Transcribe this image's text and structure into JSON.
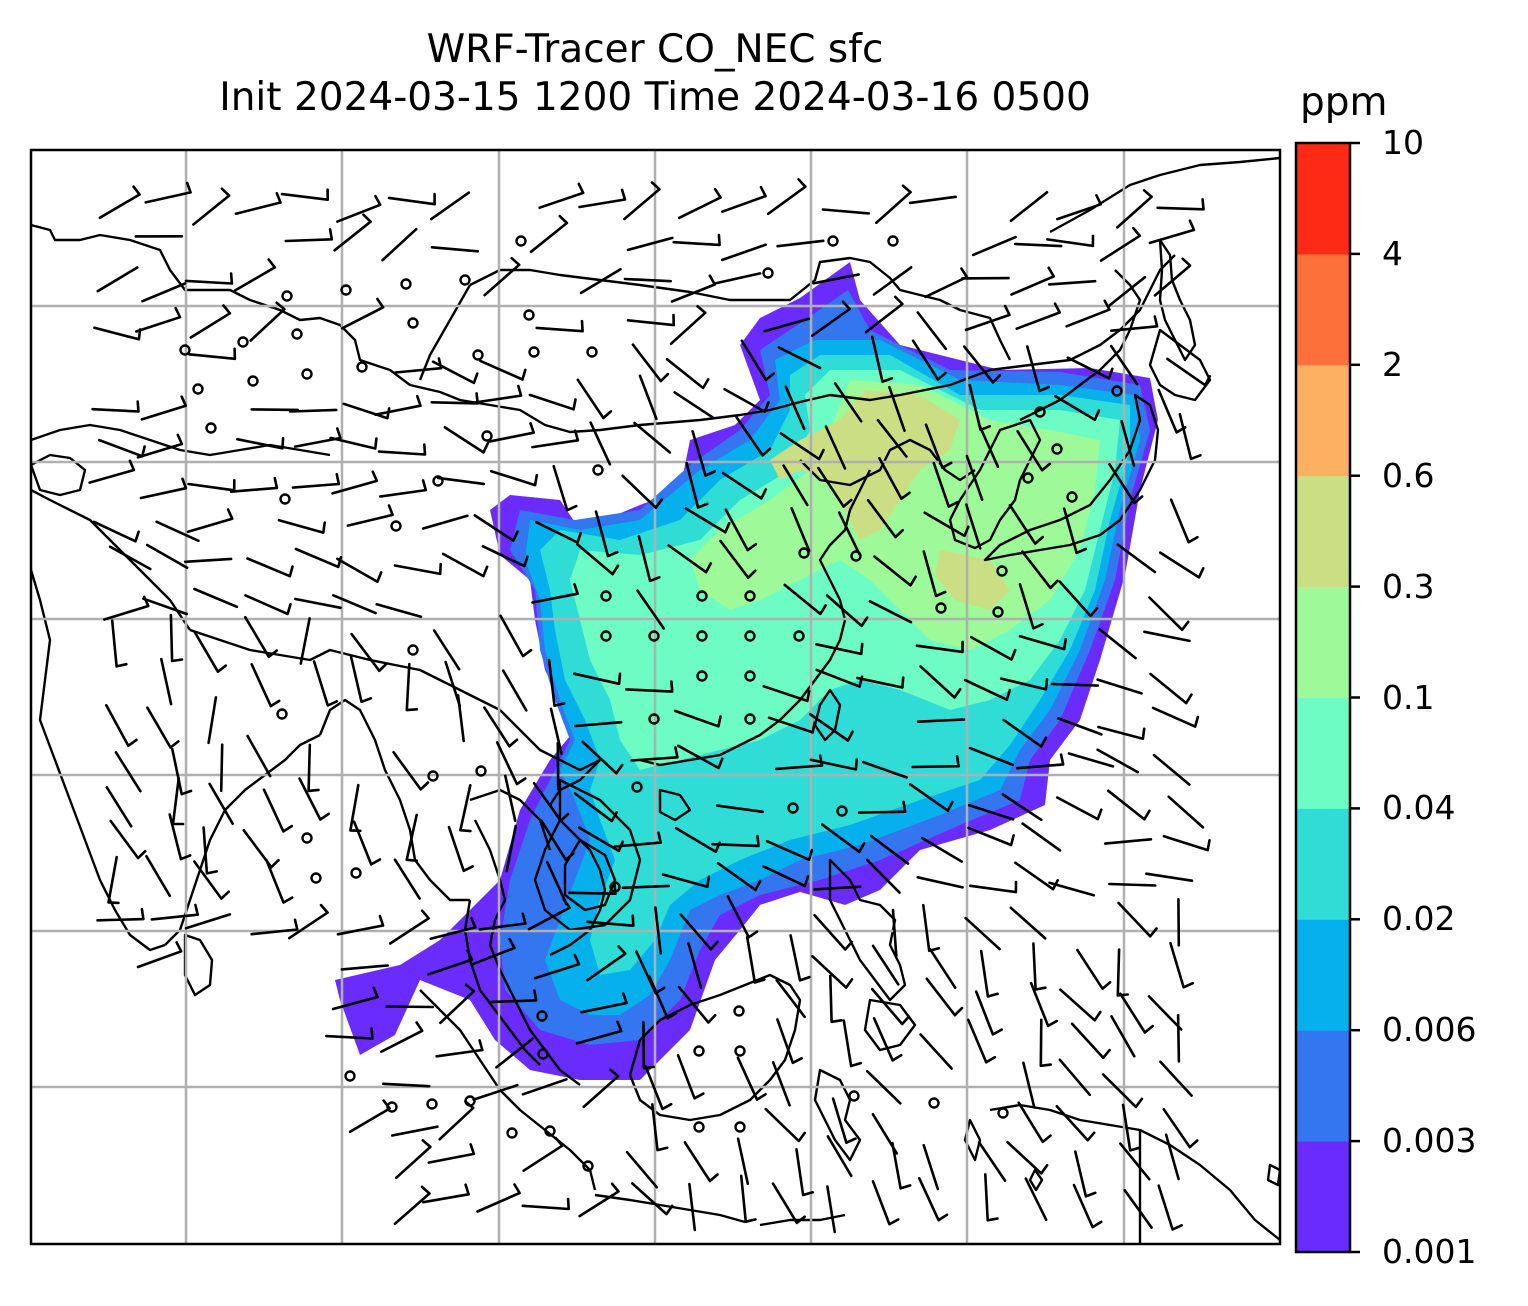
{
  "title": {
    "line1": "WRF-Tracer CO_NEC sfc",
    "line2": "Init 2024-03-15 1200 Time 2024-03-16 0500"
  },
  "colorbar": {
    "unit": "ppm",
    "levels": [
      "0.001",
      "0.003",
      "0.006",
      "0.02",
      "0.04",
      "0.1",
      "0.3",
      "0.6",
      "2",
      "4",
      "10"
    ],
    "colors": [
      "#6a2cfc",
      "#3476f0",
      "#06b0ec",
      "#30dcd6",
      "#6cfcc4",
      "#9efa98",
      "#ccde84",
      "#fdb062",
      "#fd703a",
      "#ff2a16"
    ]
  },
  "map": {
    "gridlines": true,
    "overlays": [
      "coastlines",
      "country-borders",
      "wind-barbs",
      "CO-tracer-filled-contours"
    ]
  }
}
